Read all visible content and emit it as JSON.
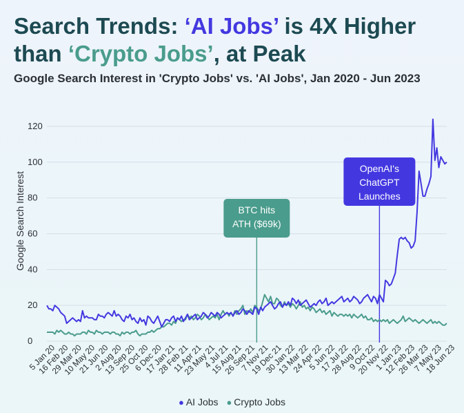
{
  "title": {
    "part1": "Search Trends: ",
    "ai_label": "‘AI Jobs’",
    "part2": " is 4X Higher than ",
    "crypto_label": "‘Crypto Jobs’",
    "part3": ", at Peak"
  },
  "chart_data": {
    "type": "line",
    "title": "Search Trends: ‘AI Jobs’ is 4X Higher than ‘Crypto Jobs’, at Peak",
    "subtitle": "Google Search Interest in 'Crypto Jobs' vs. 'AI Jobs', Jan 2020 - Jun 2023",
    "xlabel": "",
    "ylabel": "Google Search Interest",
    "ylim": [
      0,
      125
    ],
    "yticks": [
      0,
      20,
      40,
      60,
      80,
      100,
      120
    ],
    "grid": true,
    "legend_position": "bottom",
    "x_tick_labels": [
      "5 Jan 20",
      "16 Feb 20",
      "29 Mar 20",
      "10 May 20",
      "21 Jun 20",
      "2 Aug 20",
      "13 Sep 20",
      "25 Oct 20",
      "6 Dec 20",
      "17 Jan 21",
      "28 Feb 21",
      "11 Apr 21",
      "23 May 21",
      "4 Jul 21",
      "15 Aug 21",
      "26 Sep 21",
      "7 Nov 21",
      "19 Dec 21",
      "30 Jan 22",
      "13 Mar 22",
      "24 Apr 22",
      "5 Jun 22",
      "17 Jul 22",
      "28 Aug 22",
      "9 Oct 22",
      "20 Nov 22",
      "1 Jan 23",
      "12 Feb 23",
      "26 Mar 23",
      "7 May 23",
      "18 Jun 23"
    ],
    "series": [
      {
        "name": "AI Jobs",
        "color": "#4338e0",
        "values": [
          20,
          18,
          18,
          17,
          20,
          19,
          18,
          16,
          15,
          14,
          10,
          11,
          12,
          13,
          12,
          11,
          12,
          11,
          17,
          13,
          14,
          13,
          13,
          13,
          12,
          12,
          15,
          14,
          14,
          13,
          15,
          16,
          15,
          14,
          17,
          14,
          15,
          14,
          12,
          11,
          14,
          13,
          15,
          12,
          13,
          11,
          10,
          13,
          11,
          12,
          9,
          14,
          13,
          11,
          10,
          12,
          14,
          11,
          8,
          10,
          12,
          12,
          11,
          13,
          14,
          11,
          13,
          12,
          14,
          11,
          13,
          15,
          12,
          13,
          14,
          15,
          12,
          13,
          14,
          16,
          15,
          13,
          14,
          16,
          15,
          14,
          16,
          15,
          13,
          14,
          15,
          16,
          15,
          16,
          14,
          16,
          17,
          15,
          16,
          18,
          17,
          15,
          17,
          16,
          15,
          19,
          18,
          15,
          19,
          17,
          19,
          20,
          21,
          22,
          20,
          18,
          19,
          21,
          22,
          19,
          21,
          20,
          22,
          20,
          24,
          23,
          21,
          23,
          20,
          21,
          22,
          23,
          21,
          19,
          20,
          21,
          20,
          22,
          23,
          21,
          22,
          24,
          20,
          21,
          22,
          21,
          22,
          23,
          24,
          25,
          22,
          23,
          24,
          22,
          23,
          25,
          24,
          23,
          21,
          22,
          24,
          25,
          26,
          24,
          22,
          25,
          24,
          21,
          26,
          24,
          22,
          34,
          33,
          31,
          32,
          35,
          38,
          48,
          57,
          58,
          57,
          58,
          56,
          55,
          52,
          53,
          56,
          72,
          95,
          88,
          81,
          81,
          85,
          88,
          92,
          124,
          101,
          108,
          97,
          103,
          101,
          99,
          100
        ],
        "color_name": "blue"
      },
      {
        "name": "Crypto Jobs",
        "color": "#4a9c8c",
        "values": [
          5,
          5,
          5,
          5,
          4,
          6,
          5,
          6,
          5,
          4,
          4,
          5,
          4,
          4,
          3,
          4,
          4,
          4,
          5,
          5,
          4,
          6,
          5,
          5,
          4,
          6,
          5,
          5,
          4,
          5,
          5,
          5,
          4,
          5,
          5,
          4,
          4,
          3,
          5,
          4,
          5,
          5,
          4,
          5,
          5,
          6,
          4,
          3,
          4,
          4,
          4,
          5,
          5,
          6,
          5,
          6,
          7,
          7,
          8,
          8,
          9,
          10,
          10,
          9,
          11,
          10,
          13,
          12,
          11,
          12,
          12,
          15,
          13,
          14,
          12,
          13,
          15,
          14,
          12,
          13,
          15,
          14,
          12,
          13,
          14,
          13,
          15,
          12,
          15,
          17,
          15,
          16,
          14,
          16,
          14,
          17,
          15,
          17,
          18,
          20,
          15,
          17,
          16,
          18,
          16,
          20,
          19,
          17,
          18,
          22,
          26,
          24,
          22,
          25,
          21,
          21,
          24,
          23,
          20,
          19,
          22,
          20,
          21,
          19,
          21,
          20,
          18,
          20,
          22,
          19,
          20,
          18,
          19,
          17,
          19,
          18,
          16,
          17,
          18,
          16,
          17,
          15,
          16,
          17,
          14,
          16,
          15,
          14,
          15,
          15,
          14,
          15,
          14,
          15,
          13,
          15,
          14,
          13,
          14,
          15,
          13,
          14,
          12,
          12,
          13,
          11,
          12,
          11,
          12,
          11,
          12,
          11,
          12,
          10,
          11,
          12,
          11,
          10,
          11,
          12,
          14,
          11,
          12,
          13,
          12,
          11,
          12,
          11,
          10,
          11,
          12,
          11,
          10,
          11,
          12,
          10,
          11,
          10,
          11,
          10,
          9,
          9,
          10
        ],
        "color_name": "teal"
      }
    ],
    "annotations": [
      {
        "label": "BTC hits ATH ($69k)",
        "line1": "BTC hits",
        "line2": "ATH ($69k)",
        "x_index": 106,
        "color": "#4a9c8c"
      },
      {
        "label": "OpenAI's ChatGPT Launches",
        "line1": "OpenAI's",
        "line2": "ChatGPT",
        "line3": "Launches",
        "x_index": 168,
        "color": "#4338e0"
      }
    ]
  }
}
